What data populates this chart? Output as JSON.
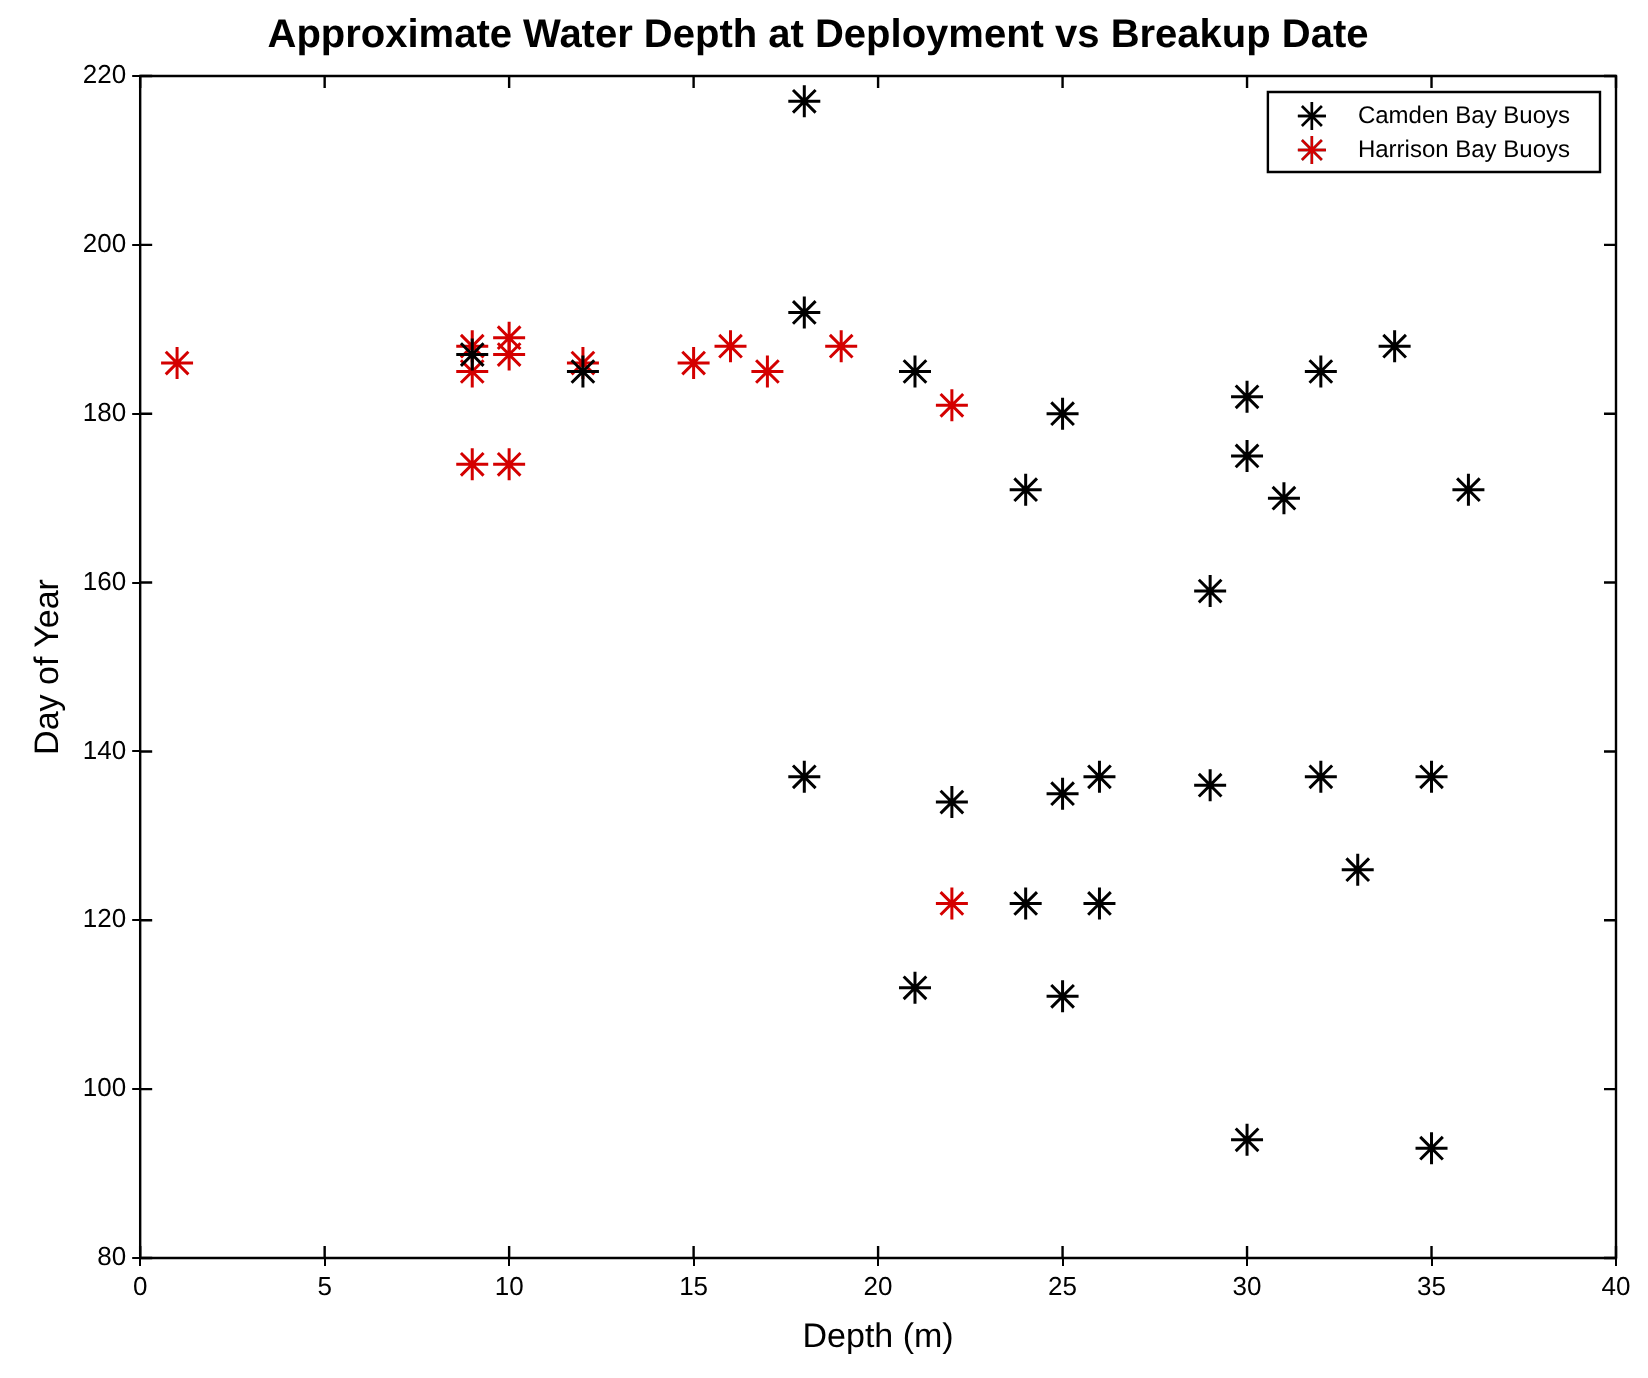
{
  "chart_data": {
    "type": "scatter",
    "title": "Approximate Water Depth at Deployment vs Breakup Date",
    "xlabel": "Depth (m)",
    "ylabel": "Day of Year",
    "xlim": [
      0,
      40
    ],
    "xticks": [
      0,
      5,
      10,
      15,
      20,
      25,
      30,
      35,
      40
    ],
    "ylim": [
      80,
      220
    ],
    "yticks": [
      80,
      100,
      120,
      140,
      160,
      180,
      200,
      220
    ],
    "grid": false,
    "legend": "top right",
    "marker": "cross",
    "series": [
      {
        "name": "Camden Bay Buoys",
        "color": "#000000",
        "x": [
          18,
          18,
          21,
          25,
          24,
          30,
          30,
          32,
          34,
          31,
          36,
          29,
          12,
          9,
          18,
          22,
          25,
          26,
          29,
          32,
          35,
          33,
          24,
          26,
          21,
          25,
          30,
          35
        ],
        "values": [
          217,
          192,
          185,
          180,
          171,
          182,
          175,
          185,
          188,
          170,
          171,
          159,
          185,
          187,
          137,
          134,
          135,
          137,
          136,
          137,
          137,
          126,
          122,
          122,
          112,
          111,
          94,
          93
        ]
      },
      {
        "name": "Harrison Bay Buoys",
        "color": "#d40000",
        "x": [
          1,
          9,
          9,
          10,
          10,
          9,
          10,
          12,
          15,
          16,
          17,
          19,
          22,
          22
        ],
        "values": [
          186,
          188,
          185,
          189,
          187,
          174,
          174,
          186,
          186,
          188,
          185,
          188,
          181,
          122
        ]
      }
    ]
  }
}
